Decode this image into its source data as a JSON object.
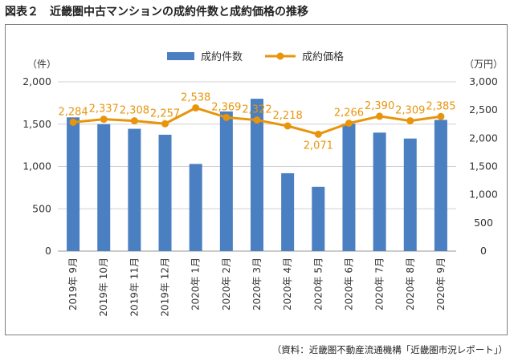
{
  "figure": {
    "title": "図表２　近畿圏中古マンションの成約件数と成約価格の推移",
    "source": "（資料：近畿圏不動産流通機構「近畿圏市況レポート」）"
  },
  "colors": {
    "bar": "#4a7fc1",
    "line": "#e8950c",
    "grid": "#d0d0d0"
  },
  "chart_data": {
    "type": "bar",
    "categories": [
      "2019年 9月",
      "2019年 10月",
      "2019年 11月",
      "2019年 12月",
      "2020年 1月",
      "2020年 2月",
      "2020年 3月",
      "2020年 4月",
      "2020年 5月",
      "2020年 6月",
      "2020年 7月",
      "2020年 8月",
      "2020年 9月"
    ],
    "series": [
      {
        "name": "成約件数",
        "type": "bar",
        "axis": "left",
        "values": [
          1580,
          1500,
          1445,
          1375,
          1030,
          1650,
          1800,
          920,
          760,
          1505,
          1400,
          1330,
          1550
        ]
      },
      {
        "name": "成約価格",
        "type": "line",
        "axis": "right",
        "values": [
          2284,
          2337,
          2308,
          2257,
          2538,
          2369,
          2322,
          2218,
          2071,
          2266,
          2390,
          2309,
          2385
        ],
        "data_labels": [
          "2,284",
          "2,337",
          "2,308",
          "2,257",
          "2,538",
          "2,369",
          "2,322",
          "2,218",
          "2,071",
          "2,266",
          "2,390",
          "2,309",
          "2,385"
        ]
      }
    ],
    "left_axis": {
      "unit": "（件）",
      "ylim": [
        0,
        2000
      ],
      "ticks": [
        0,
        500,
        1000,
        1500,
        2000
      ],
      "tick_labels": [
        "0",
        "500",
        "1,000",
        "1,500",
        "2,000"
      ]
    },
    "right_axis": {
      "unit": "（万円）",
      "ylim": [
        0,
        3000
      ],
      "ticks": [
        0,
        500,
        1000,
        1500,
        2000,
        2500,
        3000
      ],
      "tick_labels": [
        "0",
        "500",
        "1,000",
        "1,500",
        "2,000",
        "2,500",
        "3,000"
      ]
    },
    "grid": true,
    "legend_position": "top-center"
  }
}
